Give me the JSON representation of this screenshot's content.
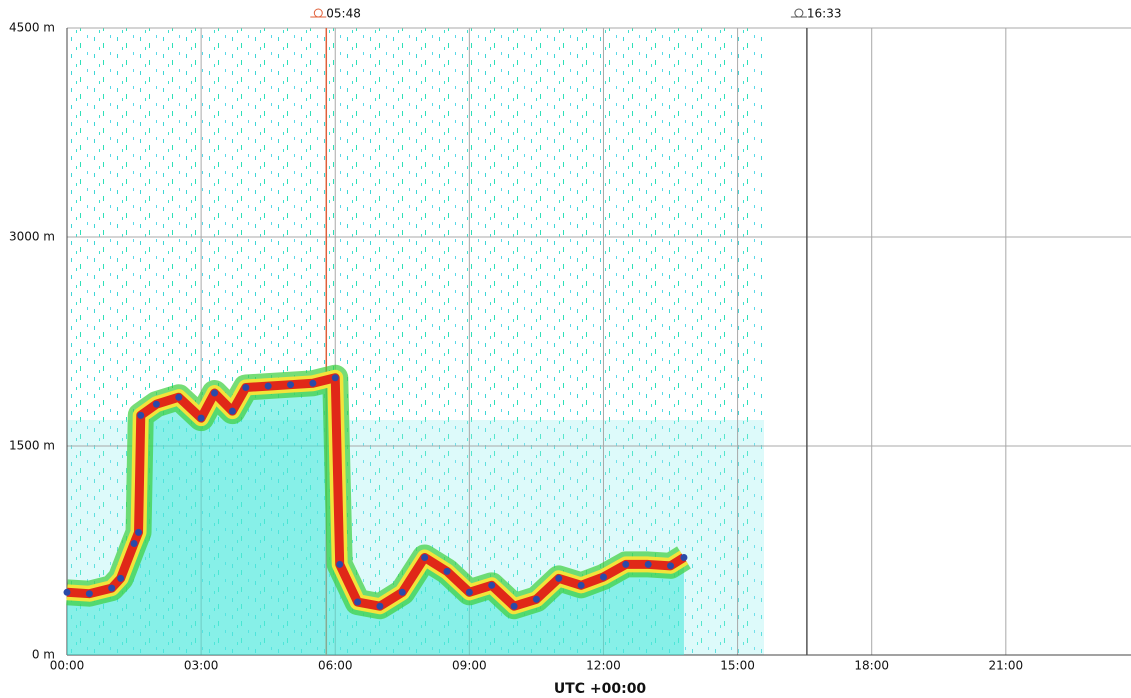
{
  "chart_data": {
    "type": "ceilometer",
    "x_label": "UTC +00:00",
    "xlim": [
      0,
      23.8
    ],
    "ylim": [
      0,
      4500
    ],
    "xticks": [
      {
        "value": 0,
        "label": "00:00"
      },
      {
        "value": 3,
        "label": "03:00"
      },
      {
        "value": 6,
        "label": "06:00"
      },
      {
        "value": 9,
        "label": "09:00"
      },
      {
        "value": 12,
        "label": "12:00"
      },
      {
        "value": 15,
        "label": "15:00"
      },
      {
        "value": 18,
        "label": "18:00"
      },
      {
        "value": 21,
        "label": "21:00"
      }
    ],
    "yticks": [
      {
        "value": 0,
        "label": "0 m"
      },
      {
        "value": 1500,
        "label": "1500 m"
      },
      {
        "value": 3000,
        "label": "3000 m"
      },
      {
        "value": 4500,
        "label": "4500 m"
      }
    ],
    "grid": true,
    "annotations": [
      {
        "x": 5.8,
        "label": "05:48",
        "color": "#e0603a"
      },
      {
        "x": 16.55,
        "label": "16:33",
        "color": "#555555"
      }
    ],
    "series": [
      {
        "color": "#2a4aa8",
        "x": [
          0,
          0.5,
          1.0,
          1.2,
          1.5,
          1.6,
          1.65,
          2.0,
          2.5,
          3.0,
          3.3,
          3.7,
          4.0,
          4.5,
          5.0,
          5.5,
          6.0,
          6.1,
          6.5,
          7.0,
          7.5,
          8.0,
          8.5,
          9.0,
          9.5,
          10.0,
          10.5,
          11.0,
          11.5,
          12.0,
          12.5,
          13.0,
          13.5,
          13.8
        ],
        "values": [
          450,
          440,
          480,
          550,
          800,
          880,
          1720,
          1800,
          1850,
          1700,
          1880,
          1750,
          1920,
          1930,
          1940,
          1950,
          1990,
          650,
          380,
          350,
          450,
          700,
          600,
          450,
          500,
          350,
          400,
          550,
          500,
          560,
          650,
          650,
          640,
          700
        ]
      }
    ]
  }
}
